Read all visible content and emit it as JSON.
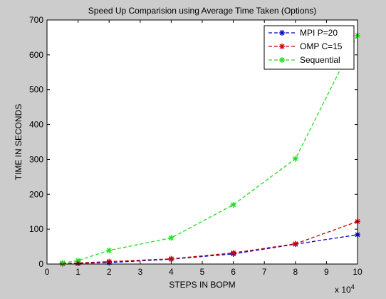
{
  "chart_data": {
    "type": "line",
    "title": "Speed Up Comparision using Average Time Taken (Options)",
    "xlabel": "STEPS IN BOPM",
    "ylabel": "TIME IN SECONDS",
    "x_exponent_label": "x 10",
    "x_exponent_power": "4",
    "xlim": [
      0,
      10
    ],
    "ylim": [
      0,
      700
    ],
    "xticks": [
      "0",
      "1",
      "2",
      "3",
      "4",
      "5",
      "6",
      "7",
      "8",
      "9",
      "10"
    ],
    "yticks": [
      "0",
      "100",
      "200",
      "300",
      "400",
      "500",
      "600",
      "700"
    ],
    "x": [
      0.5,
      1,
      2,
      4,
      6,
      8,
      10
    ],
    "grid": false,
    "legend_position": "top-right",
    "series": [
      {
        "name": "MPI P=20",
        "color": "#0000cc",
        "values": [
          1,
          2,
          4,
          14,
          29,
          57,
          84
        ]
      },
      {
        "name": "OMP C=15",
        "color": "#cc0000",
        "values": [
          1,
          3,
          7,
          15,
          32,
          58,
          122
        ]
      },
      {
        "name": "Sequential",
        "color": "#22dd22",
        "values": [
          3,
          10,
          39,
          75,
          170,
          302,
          656
        ]
      }
    ]
  }
}
